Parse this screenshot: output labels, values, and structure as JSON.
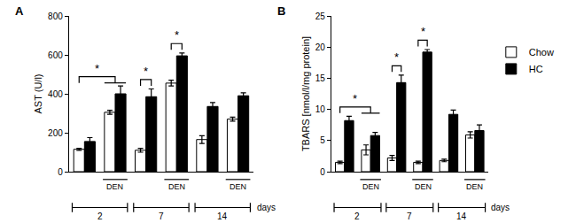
{
  "chart_data": [
    {
      "type": "bar",
      "panel_label": "A",
      "y_title": "AST (U/l)",
      "categories": [
        null,
        null,
        null,
        null,
        null,
        null
      ],
      "series": [
        {
          "name": "Chow",
          "color": "#ffffff",
          "values": [
            115,
            305,
            110,
            455,
            165,
            270
          ],
          "errors": [
            5,
            10,
            10,
            15,
            20,
            10
          ]
        },
        {
          "name": "HC",
          "color": "#000000",
          "values": [
            155,
            400,
            385,
            595,
            335,
            390
          ],
          "errors": [
            20,
            40,
            40,
            15,
            20,
            15
          ]
        }
      ],
      "ylim": [
        0,
        800
      ],
      "yticks": [
        0,
        200,
        400,
        600,
        800
      ],
      "tick_labels": "y",
      "den_label": "DEN",
      "den_groups": [
        1,
        3,
        5
      ],
      "days_label": "days",
      "day_groups": [
        {
          "label": "2",
          "from": 0,
          "to": 1
        },
        {
          "label": "7",
          "from": 2,
          "to": 3
        },
        {
          "label": "14",
          "from": 4,
          "to": 5
        }
      ],
      "significance": [
        {
          "label": "*",
          "from": {
            "group": 0,
            "series": "Chow"
          },
          "to": {
            "group": 1
          }
        },
        {
          "label": "*",
          "from": {
            "group": 2,
            "series": "Chow"
          },
          "to": {
            "group": 2,
            "series": "HC"
          }
        },
        {
          "label": "*",
          "from": {
            "group": 3,
            "series": "Chow"
          },
          "to": {
            "group": 3,
            "series": "HC"
          }
        }
      ]
    },
    {
      "type": "bar",
      "panel_label": "B",
      "y_title": "TBARS [nmol/l/mg protein]",
      "categories": [
        null,
        null,
        null,
        null,
        null,
        null
      ],
      "series": [
        {
          "name": "Chow",
          "color": "#ffffff",
          "values": [
            1.5,
            3.5,
            2.2,
            1.5,
            1.8,
            5.9
          ],
          "errors": [
            0.2,
            0.8,
            0.4,
            0.2,
            0.2,
            0.5
          ]
        },
        {
          "name": "HC",
          "color": "#000000",
          "values": [
            8.2,
            5.8,
            14.3,
            19.2,
            9.2,
            6.6
          ],
          "errors": [
            0.7,
            0.5,
            1.2,
            0.4,
            0.7,
            0.9
          ]
        }
      ],
      "ylim": [
        0,
        25
      ],
      "yticks": [
        0,
        5,
        10,
        15,
        20,
        25
      ],
      "tick_labels": "y",
      "legend": "right",
      "den_label": "DEN",
      "den_groups": [
        1,
        3,
        5
      ],
      "days_label": "days",
      "day_groups": [
        {
          "label": "2",
          "from": 0,
          "to": 1
        },
        {
          "label": "7",
          "from": 2,
          "to": 3
        },
        {
          "label": "14",
          "from": 4,
          "to": 5
        }
      ],
      "significance": [
        {
          "label": "*",
          "from": {
            "group": 0,
            "series": "Chow"
          },
          "to": {
            "group": 1
          }
        },
        {
          "label": "*",
          "from": {
            "group": 2,
            "series": "Chow"
          },
          "to": {
            "group": 2,
            "series": "HC"
          }
        },
        {
          "label": "*",
          "from": {
            "group": 3,
            "series": "Chow"
          },
          "to": {
            "group": 3,
            "series": "HC"
          }
        }
      ]
    }
  ]
}
